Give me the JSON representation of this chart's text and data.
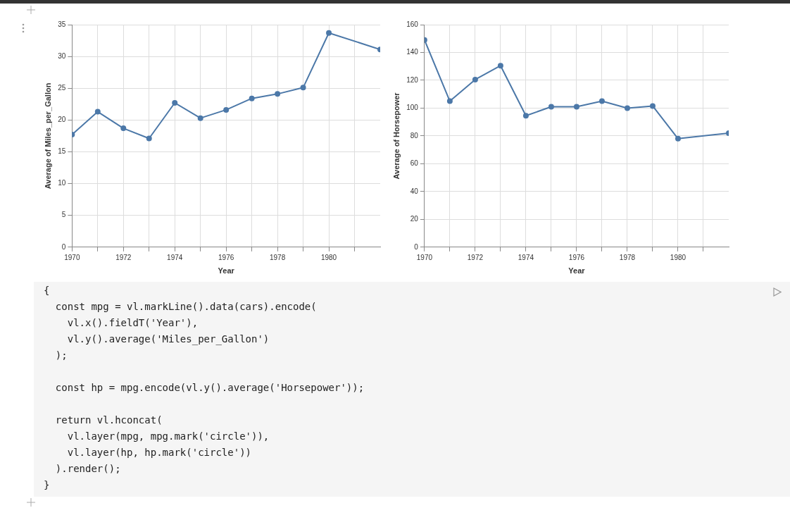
{
  "chart_data": [
    {
      "type": "line",
      "xlabel": "Year",
      "ylabel": "Average of Miles_per_Gallon",
      "x": [
        "1970",
        "1971",
        "1972",
        "1973",
        "1974",
        "1975",
        "1976",
        "1977",
        "1978",
        "1979",
        "1980",
        "1982"
      ],
      "series": [
        {
          "color": "#4c78a8",
          "values": [
            17.7,
            21.3,
            18.7,
            17.1,
            22.7,
            20.3,
            21.6,
            23.4,
            24.1,
            25.1,
            33.7,
            31.1
          ]
        }
      ],
      "xlim": [
        "1970",
        "1982"
      ],
      "xticks": [
        "1970",
        {
          "value": "1971",
          "label": null
        },
        "1972",
        {
          "value": "1973",
          "label": null
        },
        "1974",
        {
          "value": "1975",
          "label": null
        },
        "1976",
        {
          "value": "1977",
          "label": null
        },
        "1978",
        {
          "value": "1979",
          "label": null
        },
        "1980",
        {
          "value": "1981",
          "label": null
        }
      ],
      "ylim": [
        0,
        35
      ],
      "yticks": [
        0,
        5,
        10,
        15,
        20,
        25,
        30,
        35
      ],
      "grid": true,
      "marker": "circle",
      "legend": false
    },
    {
      "type": "line",
      "xlabel": "Year",
      "ylabel": "Average of Horsepower",
      "x": [
        "1970",
        "1971",
        "1972",
        "1973",
        "1974",
        "1975",
        "1976",
        "1977",
        "1978",
        "1979",
        "1980",
        "1982"
      ],
      "series": [
        {
          "color": "#4c78a8",
          "values": [
            149,
            105,
            120.5,
            130.5,
            94.5,
            101,
            101,
            105,
            100,
            101.5,
            78,
            82
          ]
        }
      ],
      "xlim": [
        "1970",
        "1982"
      ],
      "xticks": [
        "1970",
        {
          "value": "1971",
          "label": null
        },
        "1972",
        {
          "value": "1973",
          "label": null
        },
        "1974",
        {
          "value": "1975",
          "label": null
        },
        "1976",
        {
          "value": "1977",
          "label": null
        },
        "1978",
        {
          "value": "1979",
          "label": null
        },
        "1980",
        {
          "value": "1981",
          "label": null
        }
      ],
      "ylim": [
        0,
        160
      ],
      "yticks": [
        0,
        20,
        40,
        60,
        80,
        100,
        120,
        140,
        160
      ],
      "grid": true,
      "marker": "circle",
      "legend": false
    },
    {
      "type": "other",
      "annotations": [
        "{",
        "  const mpg = vl.markLine().data(cars).encode(",
        "    vl.x().fieldT('Year'),",
        "    vl.y().average('Miles_per_Gallon')",
        "  );",
        "  const hp = mpg.encode(vl.y().average('Horsepower'));",
        "  return vl.hconcat(",
        "    vl.layer(mpg, mpg.mark('circle')),",
        "    vl.layer(hp, hp.mark('circle'))",
        "  ).render();",
        "}"
      ]
    }
  ]
}
